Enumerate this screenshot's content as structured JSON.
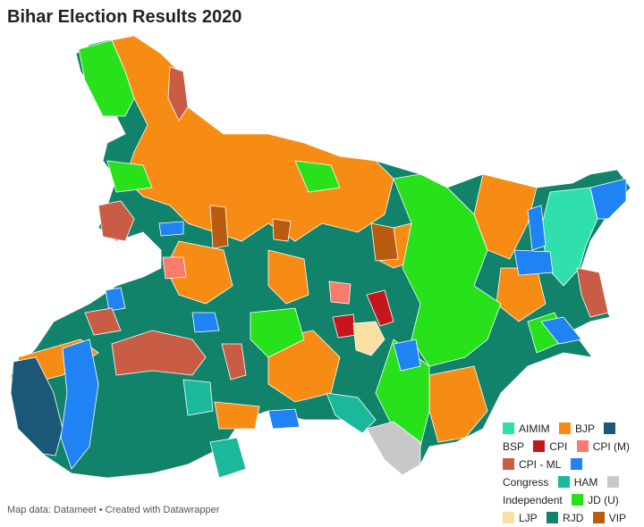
{
  "title": "Bihar Election Results 2020",
  "legend": [
    {
      "label": "AIMIM",
      "color": "#2fe0ad"
    },
    {
      "label": "BJP",
      "color": "#f68c13"
    },
    {
      "label": "BSP",
      "color": "#1b5877"
    },
    {
      "label": "CPI",
      "color": "#c4161c"
    },
    {
      "label": "CPI (M)",
      "color": "#f97b6b"
    },
    {
      "label": "CPI - ML",
      "color": "#c95c45"
    },
    {
      "label": "Congress",
      "color": "#1f83f3"
    },
    {
      "label": "HAM",
      "color": "#1bb99b"
    },
    {
      "label": "Independent",
      "color": "#c8c8c8"
    },
    {
      "label": "JD (U)",
      "color": "#27e11b"
    },
    {
      "label": "LJP",
      "color": "#f8e0a2"
    },
    {
      "label": "RJD",
      "color": "#11836b"
    },
    {
      "label": "VIP",
      "color": "#b95b10"
    }
  ],
  "footer": "Map data: Datameet • Created with Datawrapper"
}
